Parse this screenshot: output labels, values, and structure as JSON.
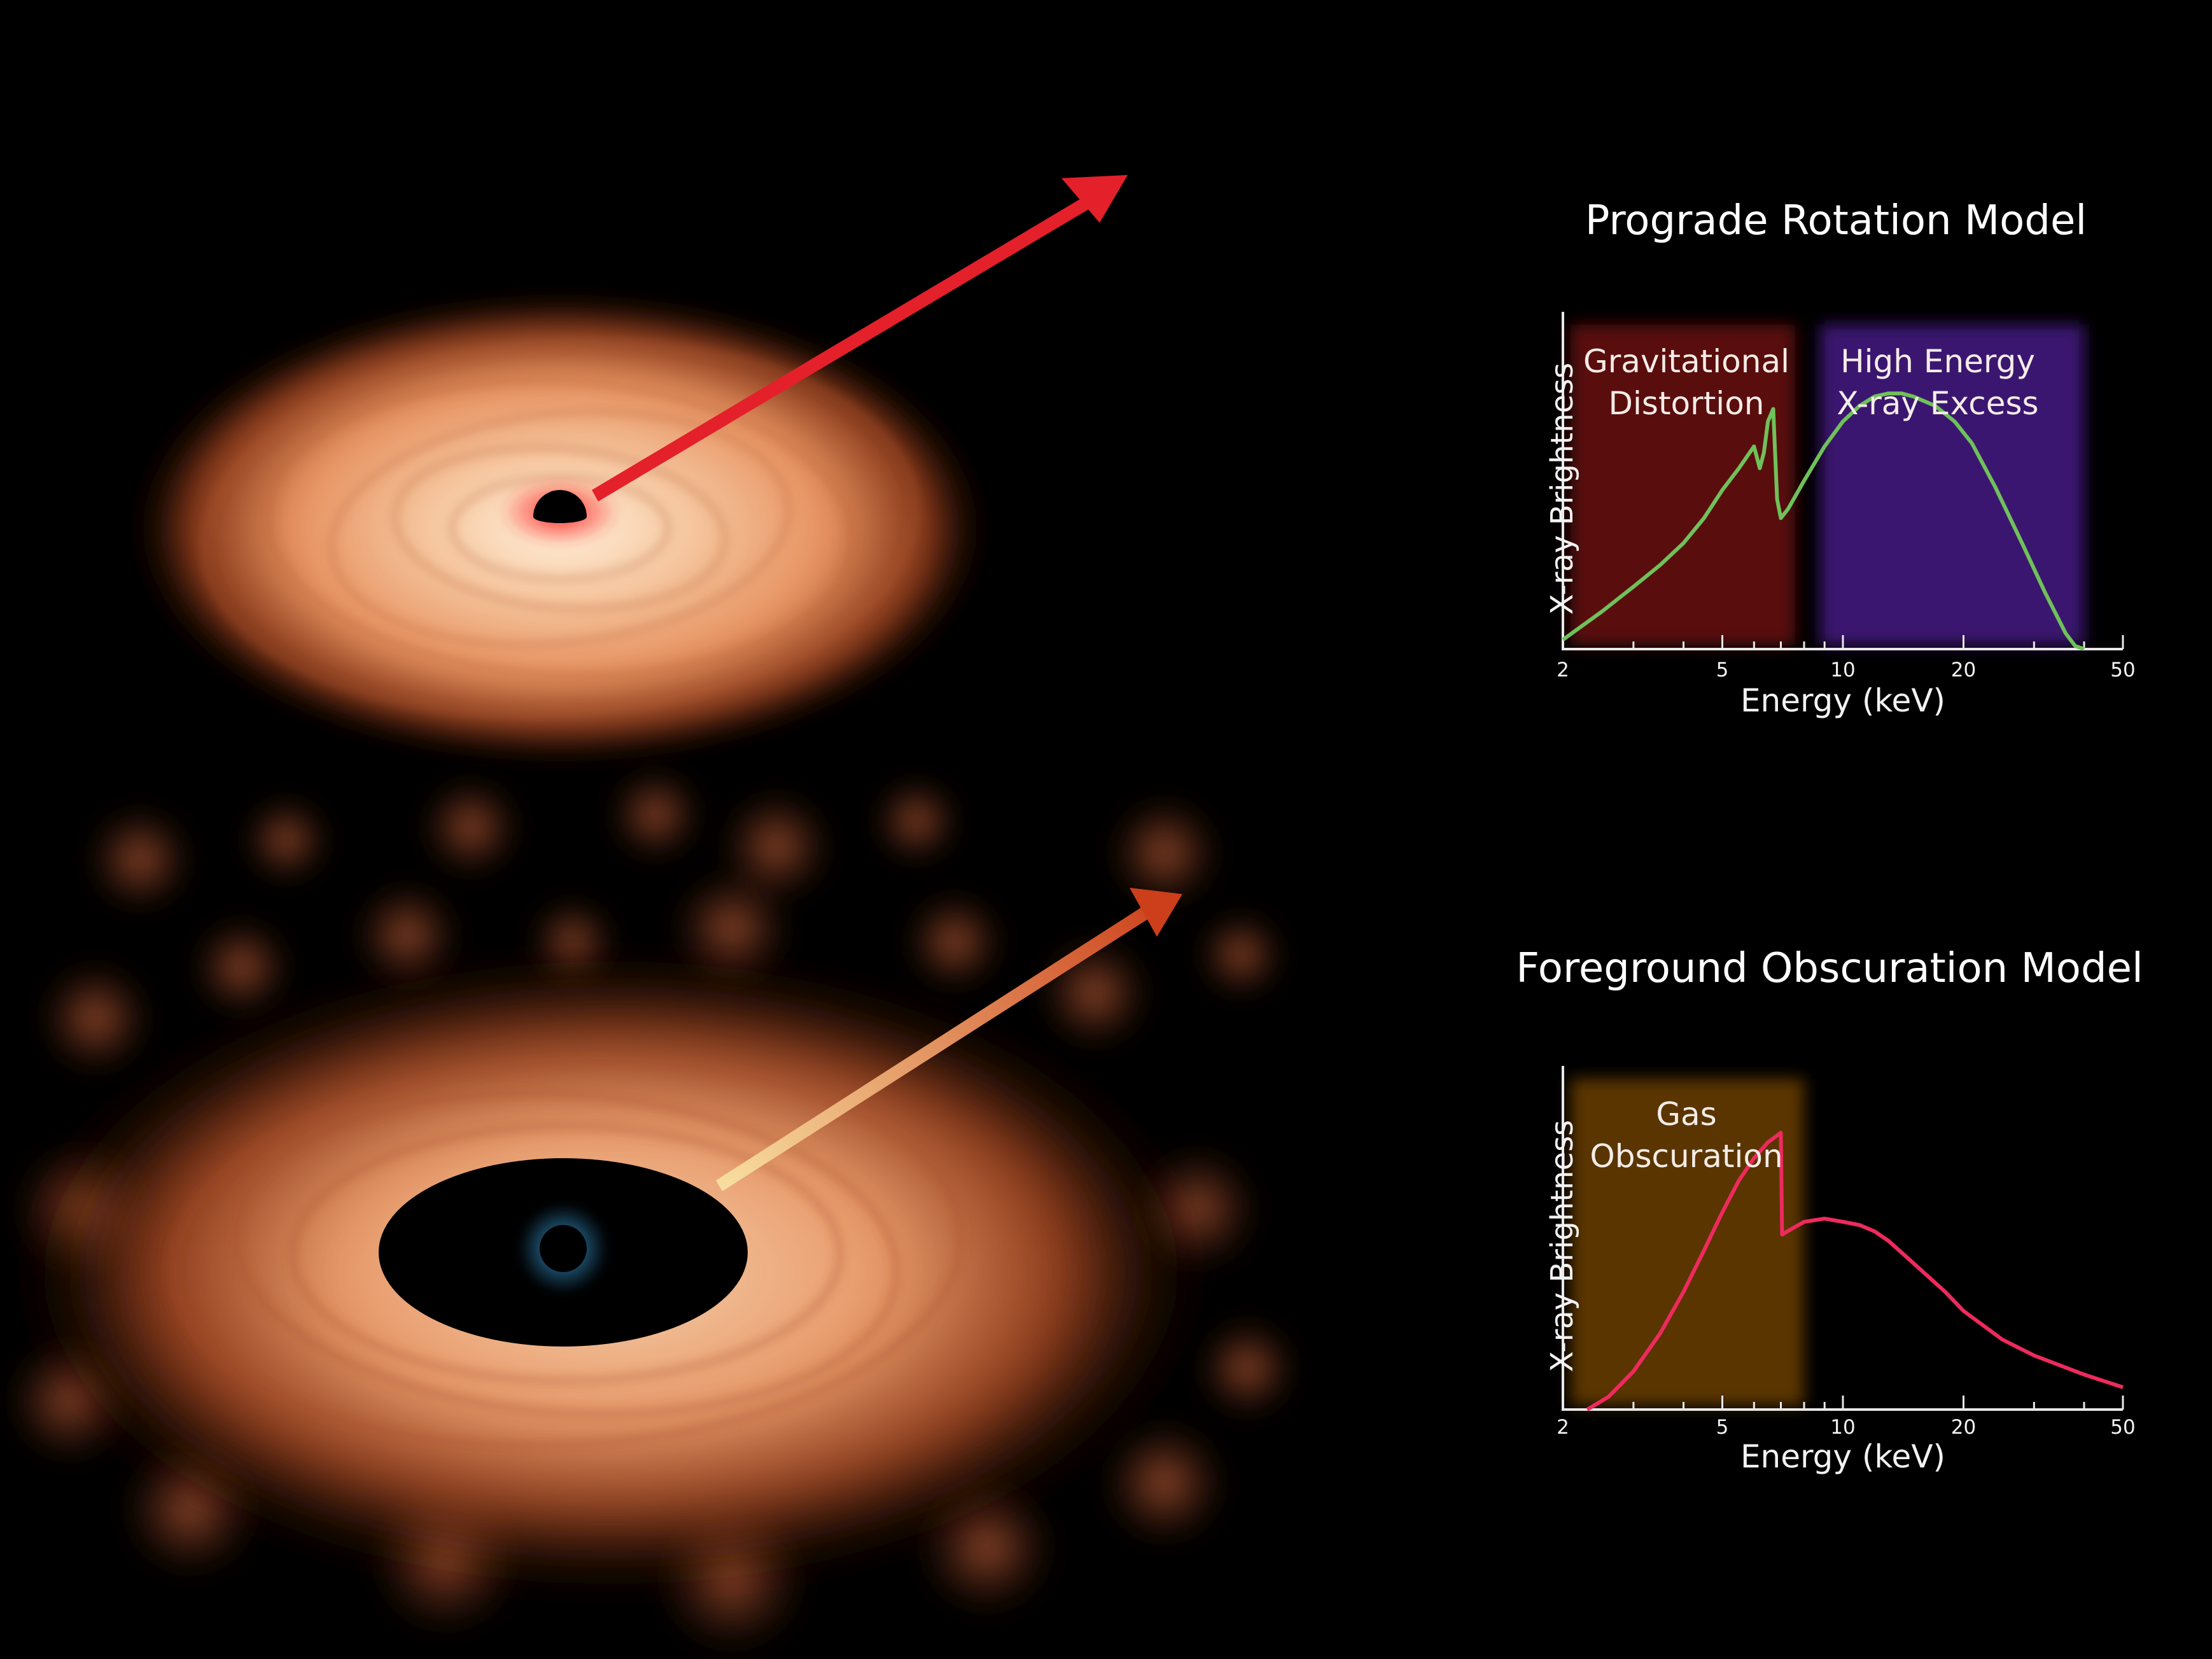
{
  "colors": {
    "disk": "#e9936b",
    "red_arrow": "#e4202b",
    "obscured_arrow_tip": "#d0491f",
    "obscured_arrow_tail": "#f4cf8c",
    "blue_glow": "#3aa3e0",
    "prograde_curve": "#6fc15a",
    "obscuration_curve": "#ee2a5d",
    "band_gravitational": "#5a0e0e",
    "band_high_energy": "#3a1570",
    "band_gas": "#5a3606"
  },
  "icons": {
    "top_illustration": "black-hole-accretion-disk-icon",
    "bottom_illustration": "obscured-black-hole-disk-icon"
  },
  "chart_data": [
    {
      "type": "line",
      "title": "Prograde Rotation Model",
      "xlabel": "Energy (keV)",
      "ylabel": "X-ray Brightness",
      "xscale": "log",
      "xlim": [
        2,
        50
      ],
      "ylim": [
        0,
        1
      ],
      "xticks_major": [
        2,
        5,
        10,
        20,
        50
      ],
      "xticks_minor": [
        3,
        4,
        6,
        7,
        8,
        9,
        30,
        40
      ],
      "bands": [
        {
          "label": "Gravitational\nDistortion",
          "x": [
            2,
            7.6
          ],
          "color": "#5a0e0e"
        },
        {
          "label": "High Energy\nX-ray Excess",
          "x": [
            8.4,
            40
          ],
          "color": "#3a1570"
        }
      ],
      "series": [
        {
          "color": "#6fc15a",
          "x": [
            2,
            2.5,
            3,
            3.5,
            4,
            4.5,
            5,
            5.5,
            6.0,
            6.2,
            6.35,
            6.5,
            6.7,
            6.85,
            7.0,
            7.3,
            8,
            9,
            10,
            11,
            12,
            13,
            14,
            15,
            17,
            19,
            21,
            24,
            28,
            32,
            36,
            38,
            40
          ],
          "y": [
            0.03,
            0.12,
            0.2,
            0.27,
            0.34,
            0.42,
            0.51,
            0.58,
            0.65,
            0.58,
            0.63,
            0.73,
            0.77,
            0.48,
            0.42,
            0.45,
            0.54,
            0.65,
            0.73,
            0.78,
            0.81,
            0.82,
            0.82,
            0.81,
            0.78,
            0.73,
            0.66,
            0.52,
            0.34,
            0.18,
            0.05,
            0.01,
            0.0
          ]
        }
      ]
    },
    {
      "type": "line",
      "title": "Foreground Obscuration Model",
      "xlabel": "Energy (keV)",
      "ylabel": "X-ray Brightness",
      "xscale": "log",
      "xlim": [
        2,
        50
      ],
      "ylim": [
        0,
        1
      ],
      "xticks_major": [
        2,
        5,
        10,
        20,
        50
      ],
      "xticks_minor": [
        3,
        4,
        6,
        7,
        8,
        9,
        30,
        40
      ],
      "bands": [
        {
          "label": "Gas\nObscuration",
          "x": [
            2,
            8.0
          ],
          "color": "#5a3606"
        }
      ],
      "series": [
        {
          "color": "#ee2a5d",
          "x": [
            2.3,
            2.6,
            3,
            3.5,
            4,
            4.5,
            5,
            5.5,
            6,
            6.5,
            7.0,
            7.05,
            7.5,
            8,
            9,
            10,
            11,
            12,
            13,
            15,
            18,
            20,
            25,
            30,
            40,
            50
          ],
          "y": [
            0.0,
            0.04,
            0.12,
            0.24,
            0.37,
            0.5,
            0.62,
            0.72,
            0.79,
            0.84,
            0.87,
            0.55,
            0.57,
            0.59,
            0.6,
            0.59,
            0.58,
            0.56,
            0.53,
            0.46,
            0.37,
            0.31,
            0.22,
            0.17,
            0.11,
            0.07
          ]
        }
      ]
    }
  ]
}
